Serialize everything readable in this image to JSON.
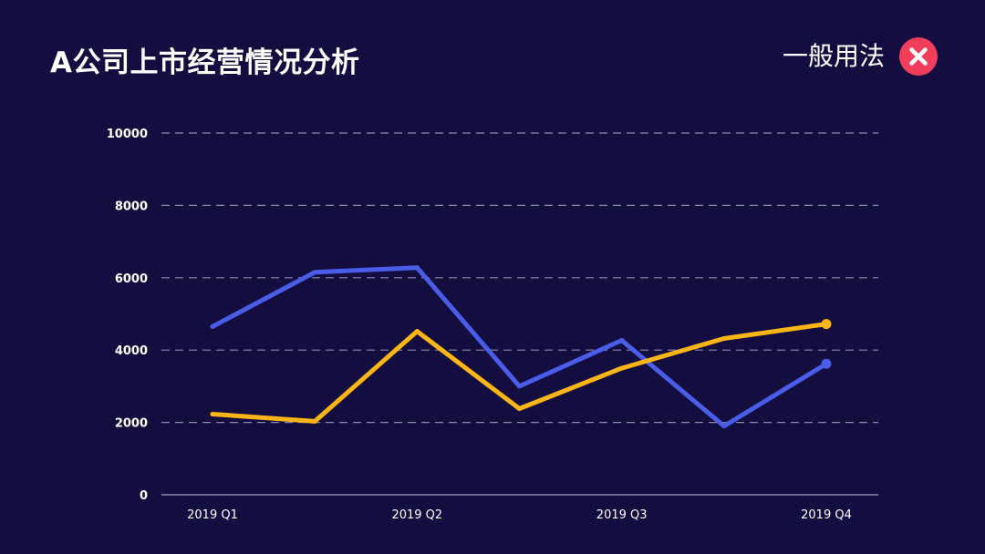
{
  "header": {
    "title": "A公司上市经营情况分析",
    "verdict_label": "一般用法",
    "verdict_icon": "close-icon",
    "verdict_color": "#f23e5a"
  },
  "chart_data": {
    "type": "line",
    "title": "A公司上市经营情况分析",
    "xlabel": "",
    "ylabel": "",
    "ylim": [
      0,
      10000
    ],
    "yticks": [
      0,
      2000,
      4000,
      6000,
      8000,
      10000
    ],
    "x": [
      "2019 Q1",
      "",
      "2019 Q2",
      "",
      "2019 Q3",
      "",
      "2019 Q4"
    ],
    "xtick_labels": [
      "2019 Q1",
      "2019 Q2",
      "2019 Q3",
      "2019 Q4"
    ],
    "grid": true,
    "legend": "none",
    "colors": {
      "background": "#140d3f",
      "grid": "#8c88a8",
      "axis": "#c9c6d9"
    },
    "series": [
      {
        "color": "#4a5de8",
        "values": [
          4650,
          6150,
          6280,
          3000,
          4270,
          1900,
          3620
        ]
      },
      {
        "color": "#fbb514",
        "values": [
          2230,
          2030,
          4520,
          2380,
          3500,
          4320,
          4720
        ]
      }
    ]
  }
}
